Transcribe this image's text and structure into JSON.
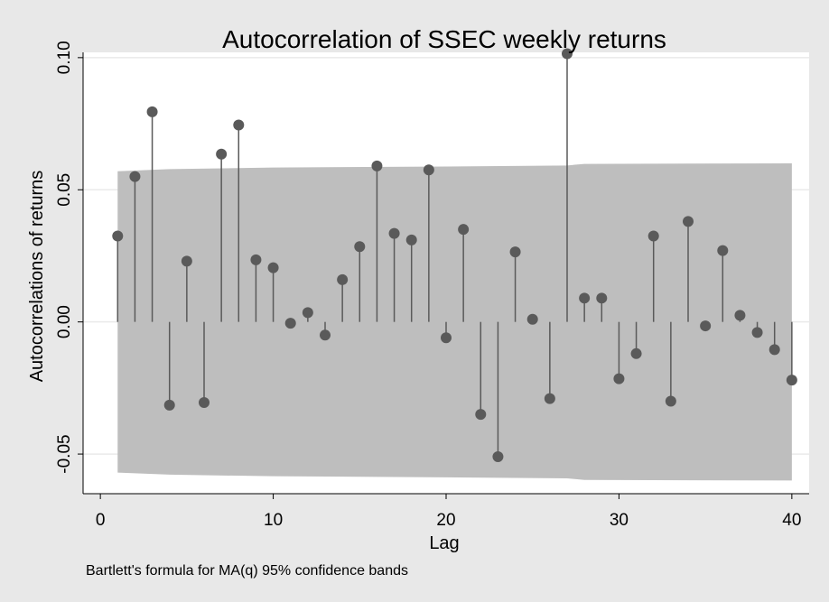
{
  "chart_data": {
    "type": "scatter",
    "subtype": "stem",
    "title": "Autocorrelation of SSEC weekly returns",
    "xlabel": "Lag",
    "ylabel": "Autocorrelations of returns",
    "note": "Bartlett's formula for MA(q) 95% confidence bands",
    "xlim": [
      -1,
      41
    ],
    "ylim": [
      -0.065,
      0.102
    ],
    "xticks": [
      0,
      10,
      20,
      30,
      40
    ],
    "xtick_labels": [
      "0",
      "10",
      "20",
      "30",
      "40"
    ],
    "yticks": [
      -0.05,
      0,
      0.05,
      0.1
    ],
    "ytick_labels": [
      "-0.05",
      "0.00",
      "0.05",
      "0.10"
    ],
    "grid": true,
    "legend": "none",
    "lags": [
      1,
      2,
      3,
      4,
      5,
      6,
      7,
      8,
      9,
      10,
      11,
      12,
      13,
      14,
      15,
      16,
      17,
      18,
      19,
      20,
      21,
      22,
      23,
      24,
      25,
      26,
      27,
      28,
      29,
      30,
      31,
      32,
      33,
      34,
      35,
      36,
      37,
      38,
      39,
      40
    ],
    "values": [
      0.0325,
      0.055,
      0.0795,
      -0.0315,
      0.023,
      -0.0305,
      0.0635,
      0.0745,
      0.0235,
      0.0205,
      -0.0005,
      0.0035,
      -0.005,
      0.016,
      0.0285,
      0.059,
      0.0335,
      0.031,
      0.0575,
      -0.006,
      0.035,
      -0.035,
      -0.051,
      0.0265,
      0.001,
      -0.029,
      0.1015,
      0.009,
      0.009,
      -0.0215,
      -0.012,
      0.0325,
      -0.03,
      0.038,
      -0.0015,
      0.027,
      0.0025,
      -0.004,
      -0.0105,
      -0.022
    ],
    "confidence_band": {
      "lags": [
        1,
        4,
        10,
        20,
        27,
        28,
        40
      ],
      "upper": [
        0.057,
        0.0578,
        0.0584,
        0.0588,
        0.0592,
        0.0598,
        0.06
      ],
      "lower": [
        -0.057,
        -0.0578,
        -0.0584,
        -0.0588,
        -0.0592,
        -0.0598,
        -0.06
      ]
    },
    "colors": {
      "background": "#e8e8e8",
      "plot_area": "#ffffff",
      "band": "#bebebe",
      "marker": "#5a5a5a",
      "stem": "#5a5a5a",
      "grid": "#eaeaea"
    }
  }
}
